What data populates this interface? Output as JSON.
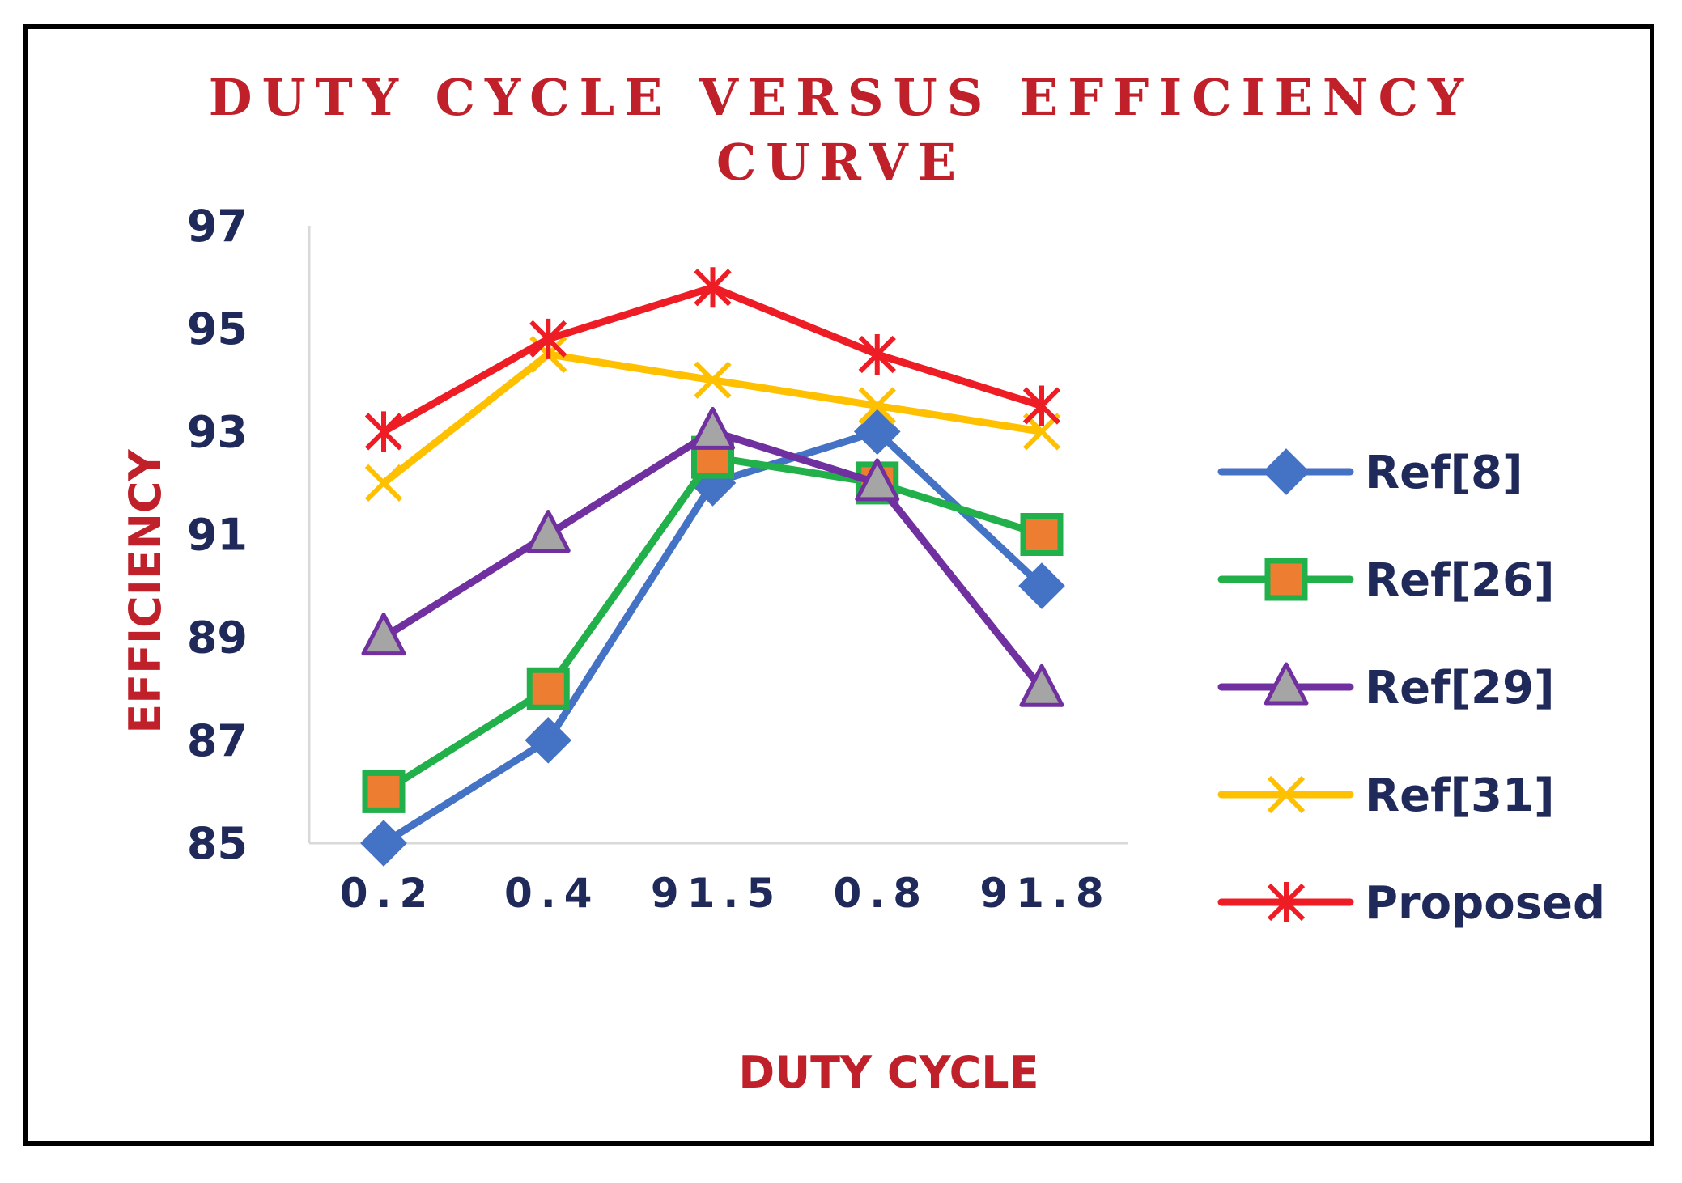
{
  "chart_data": {
    "type": "line",
    "title_lines": [
      "DUTY CYCLE VERSUS EFFICIENCY",
      "CURVE"
    ],
    "xlabel": "DUTY CYCLE",
    "ylabel": "EFFICIENCY",
    "categories": [
      "0.2",
      "0.4",
      "91.5",
      "0.8",
      "91.8"
    ],
    "ylim": [
      85,
      97
    ],
    "yticks": [
      "85",
      "87",
      "89",
      "91",
      "93",
      "95",
      "97"
    ],
    "grid": false,
    "legend_position": "right",
    "series": [
      {
        "name": "Ref[8]",
        "values": [
          85,
          87,
          92,
          93,
          90
        ],
        "line_color": "#4472C4",
        "marker": "diamond",
        "marker_fill": "#4472C4",
        "marker_stroke": "#4472C4"
      },
      {
        "name": "Ref[26]",
        "values": [
          86,
          88,
          92.5,
          92,
          91
        ],
        "line_color": "#22B04B",
        "marker": "square",
        "marker_fill": "#ED7D31",
        "marker_stroke": "#22B04B"
      },
      {
        "name": "Ref[29]",
        "values": [
          89,
          91,
          93,
          92,
          88
        ],
        "line_color": "#7030A0",
        "marker": "triangle",
        "marker_fill": "#A5A5A5",
        "marker_stroke": "#7030A0"
      },
      {
        "name": "Ref[31]",
        "values": [
          92,
          94.5,
          94,
          93.5,
          93
        ],
        "line_color": "#FFC000",
        "marker": "x",
        "marker_fill": "#FFC000",
        "marker_stroke": "#FFC000"
      },
      {
        "name": "Proposed",
        "values": [
          93,
          94.8,
          95.8,
          94.5,
          93.5
        ],
        "line_color": "#EE1C25",
        "marker": "star",
        "marker_fill": "#EE1C25",
        "marker_stroke": "#EE1C25"
      }
    ],
    "colors": {
      "title": "#C0202A",
      "axis_label": "#C0202A",
      "tick_label": "#1F2A5A",
      "legend_text": "#1F2A5A",
      "axis_line": "#D9D9D9"
    }
  }
}
